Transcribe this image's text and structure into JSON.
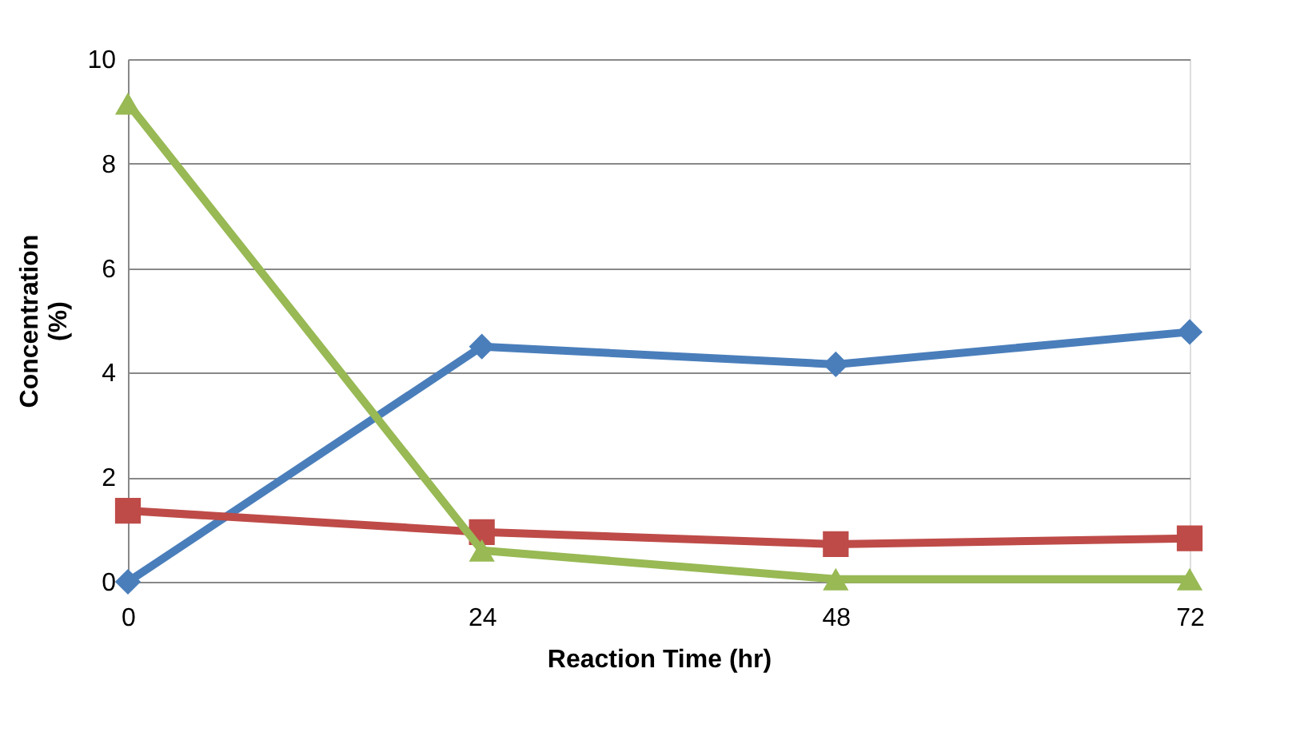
{
  "chart_data": {
    "type": "line",
    "xlabel": "Reaction Time (hr)",
    "ylabel": "Concentration (%)",
    "x": [
      0,
      24,
      48,
      72
    ],
    "xlim": [
      0,
      72
    ],
    "xticks": [
      0,
      24,
      48,
      72
    ],
    "ylim": [
      0,
      10
    ],
    "yticks": [
      0,
      2,
      4,
      6,
      8,
      10
    ],
    "grid": "y",
    "legend": false,
    "series": [
      {
        "color": "#4a7ebb",
        "marker": "diamond",
        "values": [
          0,
          4.5,
          4.16,
          4.78
        ]
      },
      {
        "color": "#be4b48",
        "marker": "square",
        "values": [
          1.36,
          0.95,
          0.72,
          0.83
        ]
      },
      {
        "color": "#98b954",
        "marker": "triangle",
        "values": [
          9.15,
          0.6,
          0.05,
          0.05
        ]
      }
    ]
  }
}
